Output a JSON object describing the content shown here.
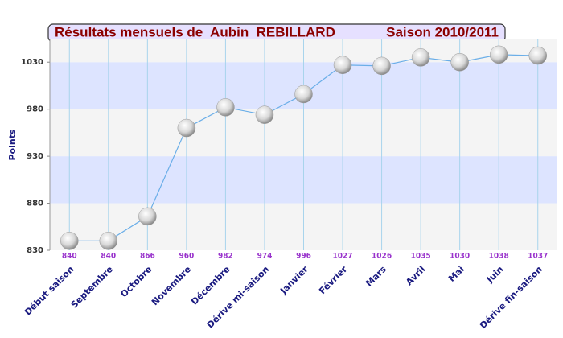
{
  "chart_data": {
    "type": "line",
    "title": "Résultats mensuels de  Aubin  REBILLARD",
    "subtitle": "Saison 2010/2011",
    "y_label": "Points",
    "categories": [
      "Début saison",
      "Septembre",
      "Octobre",
      "Novembre",
      "Décembre",
      "Dérive mi-saison",
      "Janvier",
      "Février",
      "Mars",
      "Avril",
      "Mai",
      "Juin",
      "Dérive fin-saison"
    ],
    "series": [
      {
        "name": "Points",
        "color": "#6aaee8",
        "values": [
          840,
          840,
          866,
          960,
          982,
          974,
          996,
          1027,
          1026,
          1035,
          1030,
          1038,
          1037
        ]
      }
    ],
    "ylim": [
      830,
      1055
    ],
    "yticks": [
      830,
      880,
      930,
      980,
      1030
    ],
    "grid": true
  }
}
